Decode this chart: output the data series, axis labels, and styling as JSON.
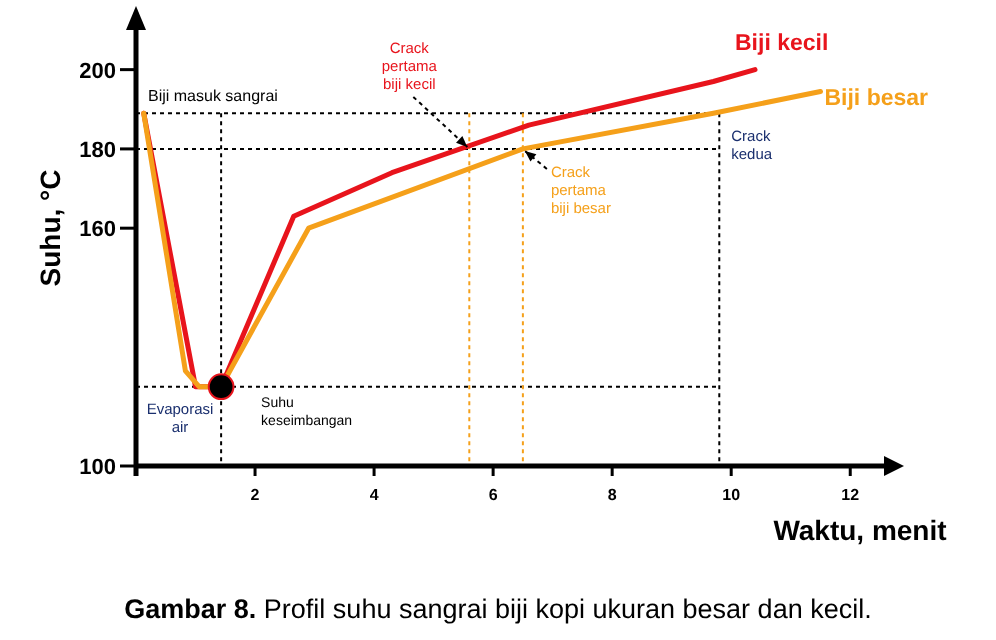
{
  "chart_data": {
    "type": "line",
    "title": "Gambar 8. Profil suhu sangrai biji kopi ukuran besar dan kecil.",
    "xlabel": "Waktu, menit",
    "ylabel": "Suhu, °C",
    "xlim": [
      0,
      12.5
    ],
    "xticks": [
      2,
      4,
      6,
      8,
      10,
      12
    ],
    "ylim": [
      100,
      210
    ],
    "yticks": [
      100,
      160,
      180,
      200
    ],
    "grid": false,
    "legend": false,
    "marker": "none",
    "line_style": "solid",
    "series": [
      {
        "name": "Biji kecil",
        "color": "#e8141c",
        "x": [
          0.13,
          1.0,
          1.43,
          2.65,
          4.3,
          6.6,
          9.7,
          10.4
        ],
        "values": [
          189,
          120,
          120,
          163,
          174,
          186,
          197,
          200
        ]
      },
      {
        "name": "Biji besar",
        "color": "#f5a01a",
        "x": [
          0.13,
          0.83,
          1.06,
          1.43,
          2.9,
          6.5,
          9.7,
          11.5
        ],
        "values": [
          189,
          124,
          120,
          120,
          160,
          180,
          189,
          194.5
        ]
      },
      {
        "type": "scatter",
        "color": "#000000",
        "x": [
          1.43
        ],
        "values": [
          120
        ],
        "marker": "circle"
      }
    ],
    "ref_lines": [
      {
        "axis": "y",
        "value": 189,
        "label": "Biji masuk sangrai",
        "color": "#000000",
        "line_style": "dotted"
      },
      {
        "axis": "y",
        "value": 180,
        "color": "#000000",
        "line_style": "dotted"
      },
      {
        "axis": "y",
        "value": 120,
        "color": "#000000",
        "line_style": "dotted"
      },
      {
        "axis": "x",
        "value": 1.43,
        "color": "#000000",
        "line_style": "dotted"
      },
      {
        "axis": "x",
        "value": 5.6,
        "color": "#f5a01a",
        "line_style": "dotted"
      },
      {
        "axis": "x",
        "value": 6.5,
        "color": "#f5a01a",
        "line_style": "dotted"
      },
      {
        "axis": "x",
        "value": 9.8,
        "color": "#000000",
        "line_style": "dotted"
      }
    ],
    "annotations": [
      {
        "text": "Crack pertama biji kecil",
        "x": 5.6,
        "y": 180
      },
      {
        "text": "Crack pertama biji besar",
        "x": 6.5,
        "y": 180
      },
      {
        "text": "Crack kedua",
        "x": 9.8,
        "y": 189
      },
      {
        "text": "Suhu keseimbangan",
        "x": 1.43,
        "y": 120
      },
      "Evaporasi air"
    ]
  }
}
